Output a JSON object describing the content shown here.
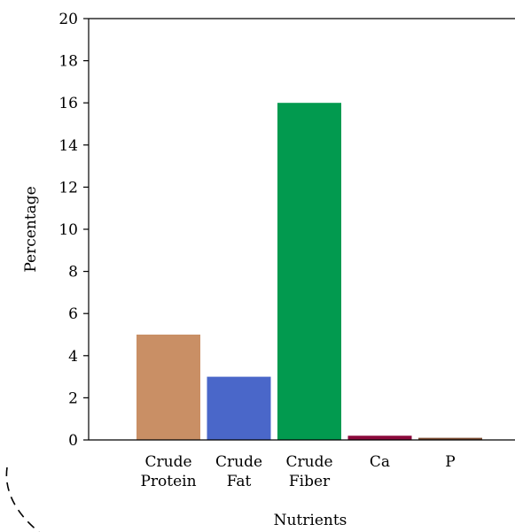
{
  "chart_data": {
    "type": "bar",
    "title": "",
    "xlabel": "Nutrients",
    "ylabel": "Percentage",
    "ylim": [
      0,
      20
    ],
    "yticks": [
      0,
      2,
      4,
      6,
      8,
      10,
      12,
      14,
      16,
      18,
      20
    ],
    "categories": [
      [
        "Crude",
        "Protein"
      ],
      [
        "Crude",
        "Fat"
      ],
      [
        "Crude",
        "Fiber"
      ],
      [
        "Ca"
      ],
      [
        "P"
      ]
    ],
    "values": [
      5,
      3,
      16,
      0.2,
      0.1
    ],
    "colors": [
      "#c98f65",
      "#4a67c9",
      "#029a4f",
      "#8b0a3c",
      "#7a4a30"
    ],
    "grid": false,
    "legend": "none"
  }
}
